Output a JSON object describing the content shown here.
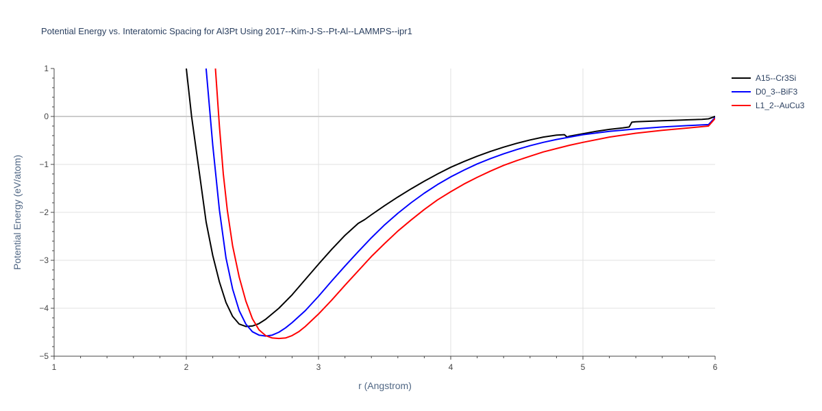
{
  "chart_data": {
    "type": "line",
    "title": "Potential Energy vs. Interatomic Spacing for Al3Pt Using 2017--Kim-J-S--Pt-Al--LAMMPS--ipr1",
    "xlabel": "r (Angstrom)",
    "ylabel": "Potential Energy (eV/atom)",
    "xlim": [
      1,
      6
    ],
    "ylim": [
      -5,
      1
    ],
    "xticks": [
      1,
      2,
      3,
      4,
      5,
      6
    ],
    "yticks": [
      1,
      0,
      -1,
      -2,
      -3,
      -4,
      -5
    ],
    "xtick_labels": [
      "1",
      "2",
      "3",
      "4",
      "5",
      "6"
    ],
    "ytick_labels": [
      "1",
      "0",
      "−1",
      "−2",
      "−3",
      "−4",
      "−5"
    ],
    "grid": true,
    "legend_position": "top-right",
    "series": [
      {
        "name": "A15--Cr3Si",
        "color": "#000000",
        "x": [
          2.0,
          2.04,
          2.08,
          2.1,
          2.15,
          2.2,
          2.25,
          2.3,
          2.35,
          2.4,
          2.45,
          2.5,
          2.55,
          2.6,
          2.7,
          2.8,
          2.9,
          3.0,
          3.1,
          3.2,
          3.3,
          3.35,
          3.4,
          3.5,
          3.6,
          3.7,
          3.8,
          3.9,
          4.0,
          4.1,
          4.2,
          4.3,
          4.4,
          4.5,
          4.6,
          4.7,
          4.8,
          4.86,
          4.88,
          4.9,
          5.0,
          5.1,
          5.2,
          5.3,
          5.35,
          5.37,
          5.4,
          5.5,
          5.6,
          5.7,
          5.8,
          5.9,
          5.95,
          6.0
        ],
        "y": [
          1.0,
          0.0,
          -0.8,
          -1.2,
          -2.2,
          -2.9,
          -3.45,
          -3.88,
          -4.17,
          -4.33,
          -4.38,
          -4.37,
          -4.32,
          -4.23,
          -4.0,
          -3.72,
          -3.4,
          -3.08,
          -2.77,
          -2.48,
          -2.23,
          -2.15,
          -2.05,
          -1.86,
          -1.68,
          -1.51,
          -1.35,
          -1.2,
          -1.06,
          -0.94,
          -0.83,
          -0.73,
          -0.64,
          -0.56,
          -0.49,
          -0.43,
          -0.39,
          -0.38,
          -0.43,
          -0.41,
          -0.36,
          -0.31,
          -0.27,
          -0.24,
          -0.22,
          -0.12,
          -0.11,
          -0.1,
          -0.09,
          -0.08,
          -0.07,
          -0.06,
          -0.05,
          0.0
        ]
      },
      {
        "name": "D0_3--BiF3",
        "color": "#0000ff",
        "x": [
          2.15,
          2.2,
          2.25,
          2.3,
          2.35,
          2.4,
          2.45,
          2.5,
          2.55,
          2.6,
          2.65,
          2.7,
          2.75,
          2.8,
          2.9,
          3.0,
          3.1,
          3.2,
          3.3,
          3.4,
          3.5,
          3.6,
          3.7,
          3.8,
          3.9,
          4.0,
          4.1,
          4.2,
          4.3,
          4.4,
          4.5,
          4.6,
          4.7,
          4.8,
          4.9,
          5.0,
          5.2,
          5.4,
          5.6,
          5.8,
          5.95,
          6.0
        ],
        "y": [
          1.0,
          -0.6,
          -1.95,
          -2.95,
          -3.6,
          -4.05,
          -4.33,
          -4.49,
          -4.56,
          -4.58,
          -4.56,
          -4.5,
          -4.41,
          -4.3,
          -4.05,
          -3.75,
          -3.43,
          -3.12,
          -2.82,
          -2.53,
          -2.26,
          -2.02,
          -1.8,
          -1.6,
          -1.42,
          -1.26,
          -1.12,
          -0.99,
          -0.88,
          -0.78,
          -0.69,
          -0.61,
          -0.54,
          -0.48,
          -0.43,
          -0.38,
          -0.31,
          -0.26,
          -0.22,
          -0.19,
          -0.17,
          -0.02
        ]
      },
      {
        "name": "L1_2--AuCu3",
        "color": "#ff0000",
        "x": [
          2.22,
          2.25,
          2.28,
          2.31,
          2.35,
          2.4,
          2.45,
          2.5,
          2.55,
          2.6,
          2.65,
          2.7,
          2.75,
          2.8,
          2.85,
          2.9,
          3.0,
          3.1,
          3.2,
          3.3,
          3.4,
          3.5,
          3.6,
          3.7,
          3.8,
          3.9,
          4.0,
          4.1,
          4.2,
          4.3,
          4.4,
          4.5,
          4.6,
          4.7,
          4.8,
          4.9,
          5.0,
          5.2,
          5.4,
          5.6,
          5.8,
          5.95,
          6.0
        ],
        "y": [
          1.0,
          -0.2,
          -1.2,
          -1.95,
          -2.7,
          -3.35,
          -3.85,
          -4.22,
          -4.45,
          -4.57,
          -4.62,
          -4.63,
          -4.62,
          -4.57,
          -4.49,
          -4.38,
          -4.12,
          -3.83,
          -3.52,
          -3.22,
          -2.92,
          -2.65,
          -2.39,
          -2.16,
          -1.94,
          -1.74,
          -1.57,
          -1.41,
          -1.27,
          -1.14,
          -1.02,
          -0.92,
          -0.83,
          -0.74,
          -0.67,
          -0.6,
          -0.54,
          -0.43,
          -0.35,
          -0.29,
          -0.24,
          -0.2,
          -0.04
        ]
      }
    ]
  }
}
